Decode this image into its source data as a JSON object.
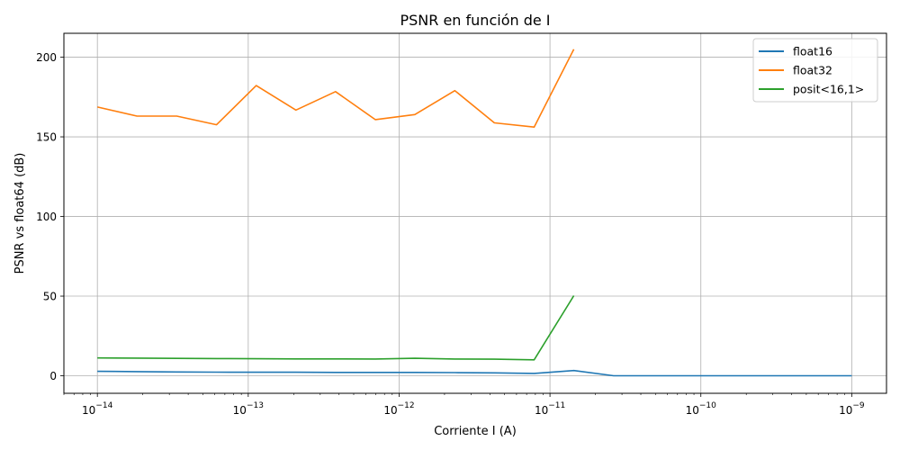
{
  "chart_data": {
    "type": "line",
    "title": "PSNR en función de I",
    "xlabel": "Corriente I (A)",
    "ylabel": "PSNR vs float64 (dB)",
    "xscale": "log",
    "xlim": [
      6e-15,
      1.7e-09
    ],
    "ylim": [
      -11,
      215
    ],
    "grid": true,
    "legend_position": "top-right",
    "x_ticks": [
      {
        "value": 1e-14,
        "base": "10",
        "exp": "−14"
      },
      {
        "value": 1e-13,
        "base": "10",
        "exp": "−13"
      },
      {
        "value": 1e-12,
        "base": "10",
        "exp": "−12"
      },
      {
        "value": 1e-11,
        "base": "10",
        "exp": "−11"
      },
      {
        "value": 1e-10,
        "base": "10",
        "exp": "−10"
      },
      {
        "value": 1e-09,
        "base": "10",
        "exp": "−9"
      }
    ],
    "y_ticks": [
      0,
      50,
      100,
      150,
      200
    ],
    "series": [
      {
        "name": "float16",
        "color": "#1f77b4",
        "x": [
          1e-14,
          1.83e-14,
          3.36e-14,
          6.16e-14,
          1.13e-13,
          2.07e-13,
          3.79e-13,
          6.95e-13,
          1.27e-12,
          2.34e-12,
          4.28e-12,
          7.85e-12,
          1.44e-11,
          2.64e-11,
          4.83e-11,
          8.86e-11,
          1.62e-10,
          2.98e-10,
          5.46e-10,
          1e-09
        ],
        "y": [
          2.8,
          2.6,
          2.4,
          2.3,
          2.2,
          2.2,
          2.1,
          2.1,
          2.1,
          2.0,
          1.8,
          1.5,
          3.3,
          0,
          0,
          0,
          0,
          0,
          0,
          0
        ]
      },
      {
        "name": "float32",
        "color": "#ff7f0e",
        "x": [
          1e-14,
          1.83e-14,
          3.36e-14,
          6.16e-14,
          1.13e-13,
          2.07e-13,
          3.79e-13,
          6.95e-13,
          1.27e-12,
          2.34e-12,
          4.28e-12,
          7.85e-12,
          1.44e-11
        ],
        "y": [
          168.7,
          163.0,
          163.0,
          157.6,
          182.2,
          166.8,
          178.4,
          160.8,
          164.0,
          179.0,
          158.8,
          156.1,
          205.0
        ]
      },
      {
        "name": "posit<16,1>",
        "color": "#2ca02c",
        "x": [
          1e-14,
          1.83e-14,
          3.36e-14,
          6.16e-14,
          1.13e-13,
          2.07e-13,
          3.79e-13,
          6.95e-13,
          1.27e-12,
          2.34e-12,
          4.28e-12,
          7.85e-12,
          1.44e-11
        ],
        "y": [
          11.2,
          11.1,
          10.9,
          10.8,
          10.7,
          10.6,
          10.6,
          10.5,
          11.0,
          10.5,
          10.4,
          10.0,
          50.3
        ]
      }
    ]
  }
}
